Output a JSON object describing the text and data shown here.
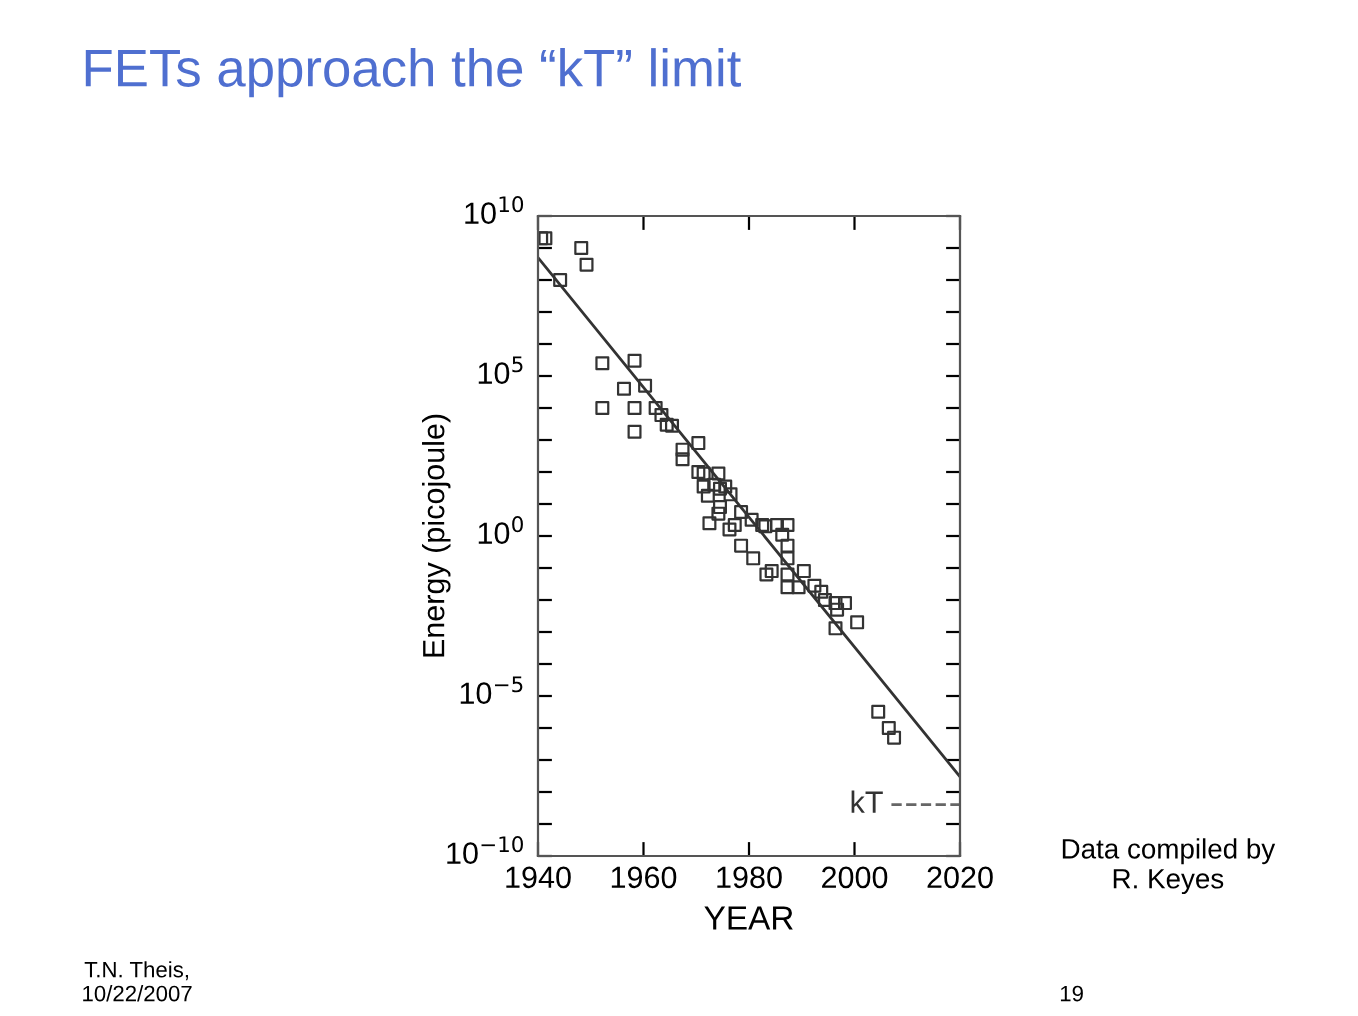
{
  "chart_data": {
    "type": "scatter",
    "title": "FETs approach the “kT” limit",
    "xlabel": "YEAR",
    "ylabel": "Energy (picojoule)",
    "log": "y",
    "grid": false,
    "xlim": [
      1940,
      2020
    ],
    "xticks": [
      1940,
      1960,
      1980,
      2000,
      2020
    ],
    "ylim": [
      1e-10,
      10000000000.0
    ],
    "yticks": [
      {
        "value": 1e-10,
        "label": "10$^{−10}$"
      },
      {
        "value": 1e-09,
        "label": null
      },
      {
        "value": 1e-08,
        "label": null
      },
      {
        "value": 1e-07,
        "label": null
      },
      {
        "value": 1e-06,
        "label": null
      },
      {
        "value": 1e-05,
        "label": "10$^{−5}$"
      },
      {
        "value": 0.0001,
        "label": null
      },
      {
        "value": 0.001,
        "label": null
      },
      {
        "value": 0.01,
        "label": null
      },
      {
        "value": 0.1,
        "label": null
      },
      {
        "value": 1,
        "label": "10$^{0}$"
      },
      {
        "value": 10,
        "label": null
      },
      {
        "value": 100,
        "label": null
      },
      {
        "value": 1000,
        "label": null
      },
      {
        "value": 10000,
        "label": null
      },
      {
        "value": 100000,
        "label": "10$^{5}$"
      },
      {
        "value": 1000000.0,
        "label": null
      },
      {
        "value": 10000000.0,
        "label": null
      },
      {
        "value": 100000000.0,
        "label": null
      },
      {
        "value": 1000000000.0,
        "label": null
      },
      {
        "value": 10000000000.0,
        "label": "10$^{10}$"
      }
    ],
    "series": [
      {
        "marker": "square",
        "color": "#333333",
        "x": [
          1940.6,
          1941.4,
          1944.2,
          1948.2,
          1949.2,
          1952.2,
          1952.2,
          1958.3,
          1956.3,
          1958.3,
          1958.3,
          1960.3,
          1962.3,
          1963.4,
          1964.4,
          1965.4,
          1967.4,
          1967.4,
          1970.4,
          1970.4,
          1971.4,
          1974.2,
          1971.4,
          1972.2,
          1973.4,
          1974.5,
          1975.5,
          1976.5,
          1972.5,
          1974.5,
          1974.2,
          1976.3,
          1977.3,
          1978.5,
          1980.5,
          1982.5,
          1985.3,
          1987.3,
          1986.3,
          1978.5,
          1987.3,
          1980.8,
          1983.1,
          1987.3,
          1983.3,
          1984.3,
          1987.3,
          1987.3,
          1989.4,
          1990.4,
          1992.4,
          1993.7,
          1994.4,
          1996.4,
          1998.2,
          1996.7,
          1996.4,
          2000.5,
          2004.5,
          2006.5,
          2007.5
        ],
        "values": [
          2000000000.0,
          2000000000.0,
          100000000.0,
          1000000000.0,
          300000000.0,
          250000.0,
          10000.0,
          300000.0,
          40000.0,
          10000.0,
          1800,
          50000.0,
          10000.0,
          6000,
          3000,
          2800,
          500,
          250,
          800,
          100,
          90,
          90,
          35,
          18,
          40,
          30,
          35,
          20,
          2.5,
          8,
          5,
          1.6,
          2.2,
          5.6,
          3.2,
          2.2,
          2.2,
          2.2,
          1.1,
          0.5,
          0.5,
          0.2,
          2,
          0.2,
          0.063,
          0.08,
          0.063,
          0.025,
          0.025,
          0.08,
          0.028,
          0.018,
          0.01,
          0.008,
          0.008,
          0.005,
          0.0013,
          0.002,
          3.2e-06,
          1e-06,
          5e-07
        ]
      },
      {
        "type": "line",
        "color": "#333333",
        "line_style": "solid",
        "x": [
          1940,
          2020
        ],
        "values": [
          500000000.0,
          3e-08
        ]
      },
      {
        "type": "line",
        "name": "kT",
        "color": "#666666",
        "line_style": "dashed",
        "x": [
          2007,
          2020
        ],
        "values": [
          4e-09,
          4e-09
        ]
      }
    ],
    "annotations": [
      "Data compiled by\nR. Keyes",
      "T.N. Theis,\n10/22/2007",
      "19"
    ]
  }
}
